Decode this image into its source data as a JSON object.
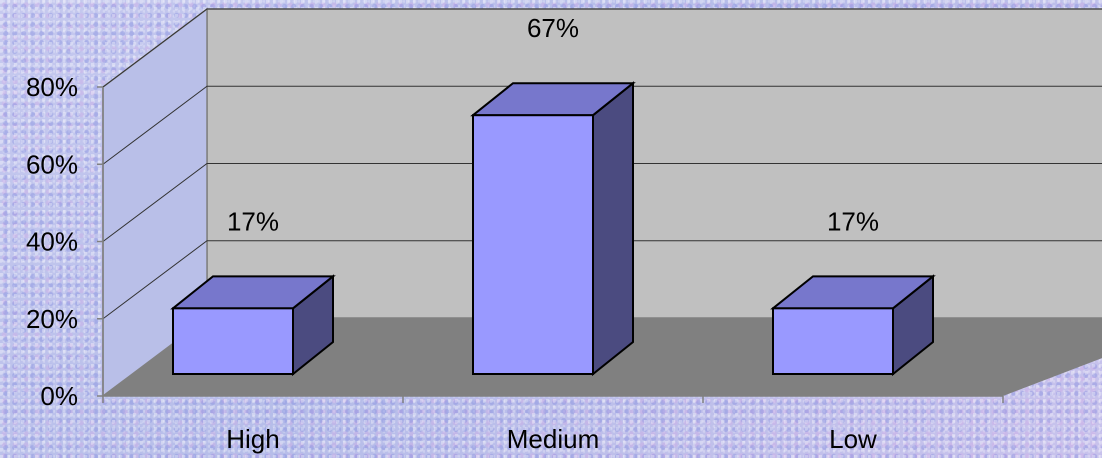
{
  "chart_data": {
    "type": "bar",
    "categories": [
      "High",
      "Medium",
      "Low"
    ],
    "values": [
      17,
      67,
      17
    ],
    "data_labels": [
      "17%",
      "67%",
      "17%"
    ],
    "y_ticks": [
      0,
      20,
      40,
      60,
      80
    ],
    "y_tick_labels": [
      "0%",
      "20%",
      "40%",
      "60%",
      "80%"
    ],
    "ylim": [
      0,
      80
    ],
    "grid": true,
    "legend": false,
    "style": "3d",
    "colors": {
      "bar_front": "#9999ff",
      "bar_top": "#7777cc",
      "bar_side": "#4b4b80",
      "back_wall": "#c0c0c0",
      "side_wall": "#b9bfe8",
      "floor": "#808080"
    }
  }
}
